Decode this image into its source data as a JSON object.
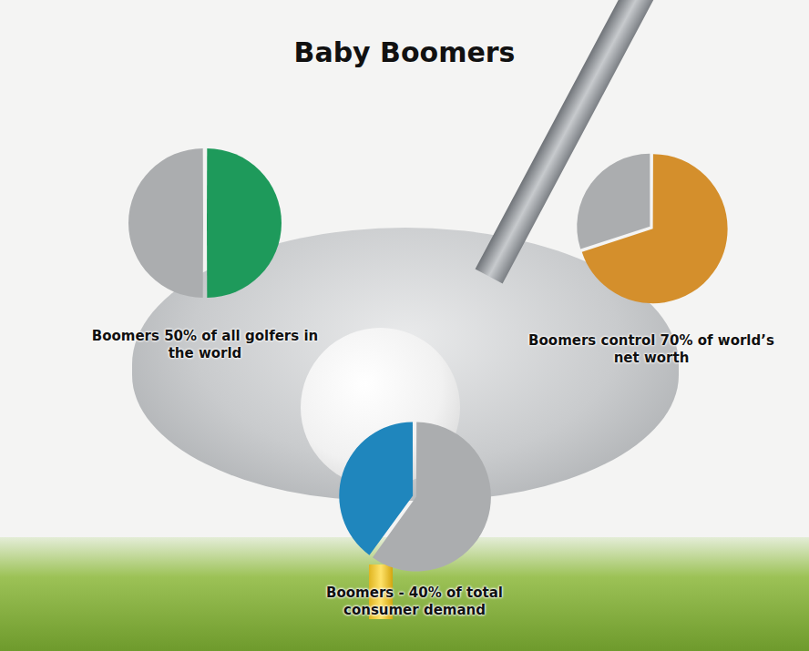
{
  "title": "Baby Boomers",
  "chart_data": [
    {
      "type": "pie",
      "title": "Boomers 50% of all golfers in the world",
      "values": [
        50,
        50
      ],
      "colors": [
        "#1e9a5b",
        "#abadaf"
      ]
    },
    {
      "type": "pie",
      "title": "Boomers control 70% of world’s net worth",
      "values": [
        70,
        30
      ],
      "colors": [
        "#d48f2c",
        "#abadaf"
      ]
    },
    {
      "type": "pie",
      "title": "Boomers - 40% of total consumer demand",
      "values": [
        40,
        60
      ],
      "colors": [
        "#1f86bd",
        "#abadaf"
      ]
    }
  ]
}
